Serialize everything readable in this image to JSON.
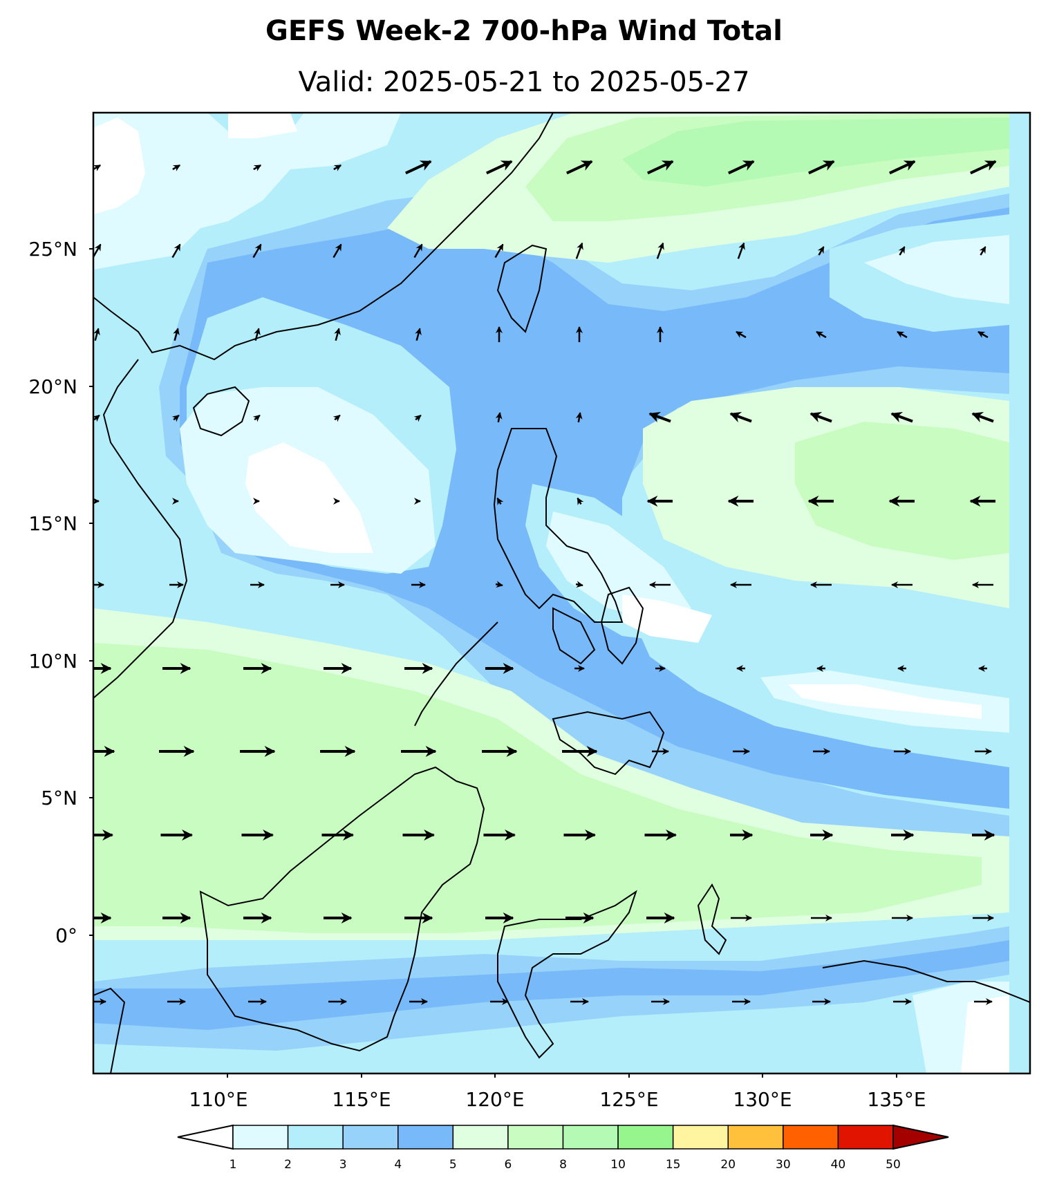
{
  "title": "GEFS Week-2 700-hPa Wind Total",
  "subtitle": "Valid: 2025-05-21 to 2025-05-27",
  "map": {
    "lon_labels": [
      "110°E",
      "115°E",
      "120°E",
      "125°E",
      "130°E",
      "135°E"
    ],
    "lat_labels": [
      "25°N",
      "20°N",
      "15°N",
      "10°N",
      "5°N",
      "0°"
    ],
    "lon_ticks": [
      110,
      115,
      120,
      125,
      130,
      135
    ],
    "lat_ticks": [
      25,
      20,
      15,
      10,
      5,
      0
    ],
    "extent": {
      "lon_min": 105,
      "lon_max": 140,
      "lat_min": -5,
      "lat_max": 30
    }
  },
  "colorbar": {
    "levels": [
      "1",
      "2",
      "3",
      "4",
      "5",
      "6",
      "8",
      "10",
      "15",
      "20",
      "30",
      "40",
      "50"
    ],
    "colors": [
      "#e0fbff",
      "#b4eefa",
      "#96d2fa",
      "#78b9fa",
      "#e0ffe0",
      "#c8fcc0",
      "#b4fab4",
      "#96f58c",
      "#fff5a0",
      "#ffc03c",
      "#ff6000",
      "#e11400",
      "#a50000"
    ],
    "under_color": "#ffffff",
    "over_color": "#a50000"
  }
}
